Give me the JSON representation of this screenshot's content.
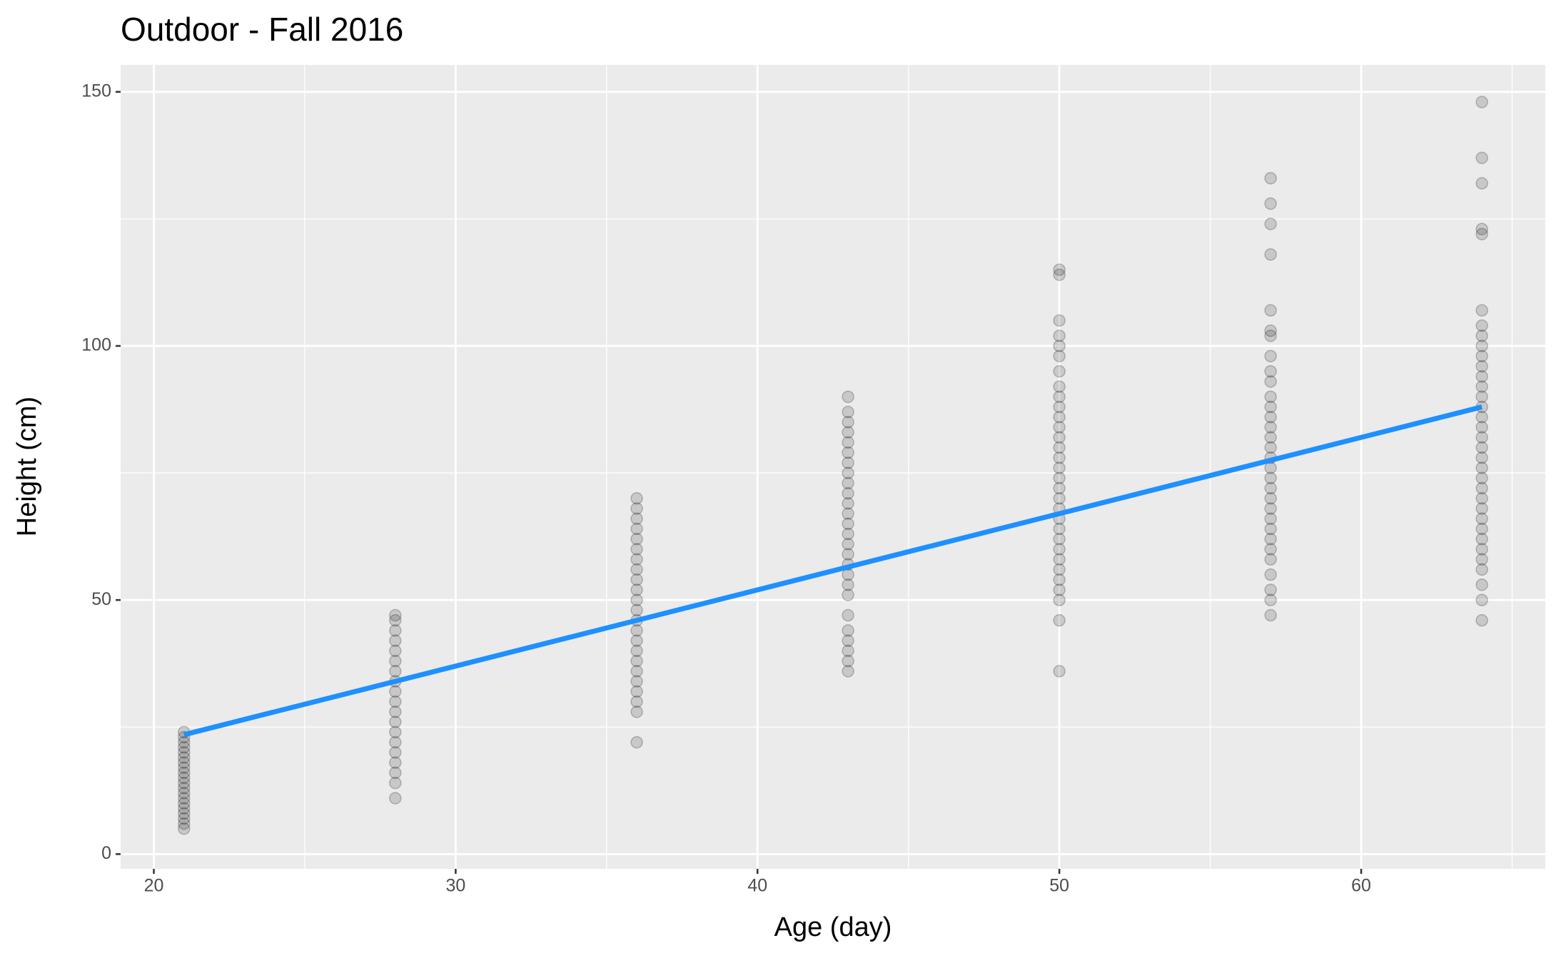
{
  "chart_data": {
    "type": "scatter",
    "title": "Outdoor - Fall 2016",
    "x_label": "Age (day)",
    "y_label": "Height (cm)",
    "xlim": [
      18.9,
      66.1
    ],
    "ylim": [
      -2.9,
      155.3
    ],
    "xticks": [
      20,
      30,
      40,
      50,
      60
    ],
    "yticks": [
      0,
      50,
      100,
      150
    ],
    "x_minor_grid": [
      25,
      35,
      45,
      55,
      65
    ],
    "y_minor_grid": [
      25,
      75,
      125
    ],
    "grid": true,
    "point_color": "#000000",
    "point_opacity": 0.15,
    "series": [
      {
        "x": 21,
        "values": [
          5,
          6,
          7,
          8,
          9,
          10,
          11,
          12,
          13,
          14,
          15,
          16,
          17,
          18,
          19,
          20,
          21,
          22,
          23,
          24
        ]
      },
      {
        "x": 28,
        "values": [
          11,
          14,
          16,
          18,
          20,
          22,
          24,
          26,
          28,
          30,
          32,
          34,
          36,
          38,
          40,
          42,
          44,
          46,
          47
        ]
      },
      {
        "x": 36,
        "values": [
          22,
          28,
          30,
          32,
          34,
          36,
          38,
          40,
          42,
          44,
          46,
          48,
          50,
          52,
          54,
          56,
          58,
          60,
          62,
          64,
          66,
          68,
          70
        ]
      },
      {
        "x": 43,
        "values": [
          36,
          38,
          40,
          42,
          44,
          47,
          51,
          53,
          55,
          57,
          59,
          61,
          63,
          65,
          67,
          69,
          71,
          73,
          75,
          77,
          79,
          81,
          83,
          85,
          87,
          90
        ]
      },
      {
        "x": 50,
        "values": [
          36,
          46,
          50,
          52,
          54,
          56,
          58,
          60,
          62,
          64,
          66,
          68,
          70,
          72,
          74,
          76,
          78,
          80,
          82,
          84,
          86,
          88,
          90,
          92,
          95,
          98,
          100,
          102,
          105,
          114,
          115
        ]
      },
      {
        "x": 57,
        "values": [
          47,
          50,
          52,
          55,
          58,
          60,
          62,
          64,
          66,
          68,
          70,
          72,
          74,
          76,
          78,
          80,
          82,
          84,
          86,
          88,
          90,
          93,
          95,
          98,
          102,
          103,
          107,
          118,
          124,
          128,
          133
        ]
      },
      {
        "x": 64,
        "values": [
          46,
          50,
          53,
          56,
          58,
          60,
          62,
          64,
          66,
          68,
          70,
          72,
          74,
          76,
          78,
          80,
          82,
          84,
          86,
          88,
          90,
          92,
          94,
          96,
          98,
          100,
          102,
          104,
          107,
          122,
          123,
          132,
          137,
          148
        ]
      }
    ],
    "fit": {
      "x": [
        21,
        64
      ],
      "y": [
        23.5,
        88
      ],
      "color": "#1e90ff"
    }
  }
}
